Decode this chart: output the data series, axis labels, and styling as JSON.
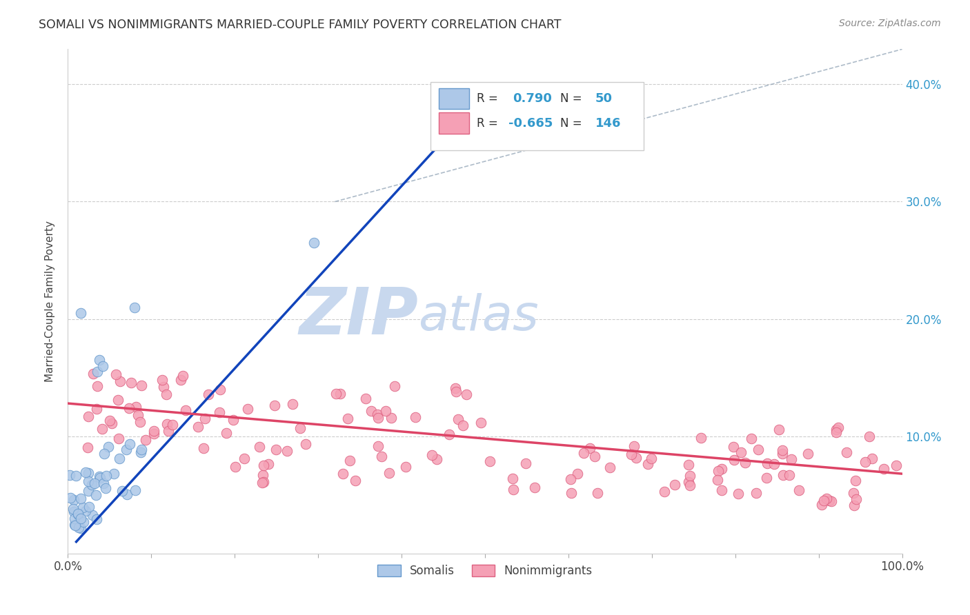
{
  "title": "SOMALI VS NONIMMIGRANTS MARRIED-COUPLE FAMILY POVERTY CORRELATION CHART",
  "source": "Source: ZipAtlas.com",
  "ylabel": "Married-Couple Family Poverty",
  "xlabel": "",
  "xlim": [
    0,
    1.0
  ],
  "ylim": [
    0,
    0.43
  ],
  "xticks": [
    0.0,
    0.1,
    0.2,
    0.3,
    0.4,
    0.5,
    0.6,
    0.7,
    0.8,
    0.9,
    1.0
  ],
  "xtick_labels": [
    "0.0%",
    "",
    "",
    "",
    "",
    "",
    "",
    "",
    "",
    "",
    "100.0%"
  ],
  "ytick_positions": [
    0.1,
    0.2,
    0.3,
    0.4
  ],
  "ytick_labels": [
    "10.0%",
    "20.0%",
    "30.0%",
    "40.0%"
  ],
  "somali_R": 0.79,
  "somali_N": 50,
  "nonimm_R": -0.665,
  "nonimm_N": 146,
  "scatter_blue_color": "#adc8e8",
  "scatter_blue_edge": "#6699cc",
  "scatter_pink_color": "#f5a0b5",
  "scatter_pink_edge": "#dd6080",
  "line_blue": "#1144bb",
  "line_pink": "#dd4466",
  "line_diag_color": "#99aabb",
  "watermark_zip_color": "#c8d8ee",
  "watermark_atlas_color": "#c8d8ee",
  "legend_label_somali": "Somalis",
  "legend_label_nonimm": "Nonimmigrants",
  "blue_line_x0": 0.01,
  "blue_line_y0": 0.01,
  "blue_line_x1": 0.46,
  "blue_line_y1": 0.36,
  "pink_line_x0": 0.0,
  "pink_line_y0": 0.128,
  "pink_line_x1": 1.0,
  "pink_line_y1": 0.068,
  "diag_line_x0": 0.32,
  "diag_line_y0": 0.3,
  "diag_line_x1": 1.0,
  "diag_line_y1": 0.43
}
